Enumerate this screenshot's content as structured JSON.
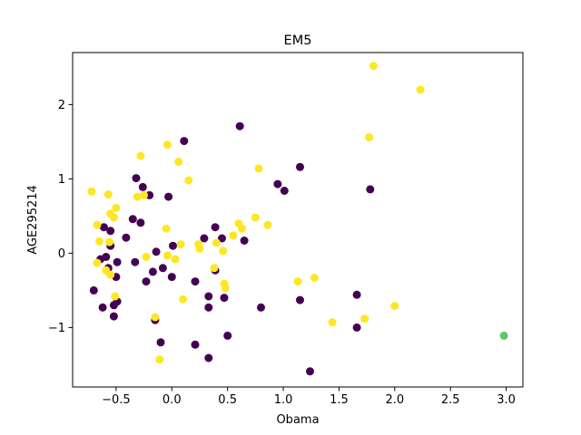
{
  "chart_data": {
    "type": "scatter",
    "title": "EM5",
    "xlabel": "Obama",
    "ylabel": "AGE295214",
    "xlim": [
      -0.89,
      3.15
    ],
    "ylim": [
      -1.8,
      2.7
    ],
    "xticks": [
      -0.5,
      0.0,
      0.5,
      1.0,
      1.5,
      2.0,
      2.5,
      3.0
    ],
    "xtick_labels": [
      "−0.5",
      "0.0",
      "0.5",
      "1.0",
      "1.5",
      "2.0",
      "2.5",
      "3.0"
    ],
    "yticks": [
      -1,
      0,
      1,
      2
    ],
    "ytick_labels": [
      "−1",
      "0",
      "1",
      "2"
    ],
    "grid": false,
    "colors": {
      "purple": "#440154",
      "yellow": "#fde725",
      "green": "#5ec962"
    },
    "series": [
      {
        "color": "purple",
        "points": [
          [
            -0.32,
            1.01
          ],
          [
            -0.26,
            0.89
          ],
          [
            -0.2,
            0.78
          ],
          [
            -0.03,
            0.76
          ],
          [
            0.11,
            1.51
          ],
          [
            0.61,
            1.71
          ],
          [
            1.15,
            1.16
          ],
          [
            0.95,
            0.93
          ],
          [
            1.01,
            0.84
          ],
          [
            1.78,
            0.86
          ],
          [
            -0.61,
            0.35
          ],
          [
            -0.35,
            0.46
          ],
          [
            -0.28,
            0.41
          ],
          [
            -0.55,
            0.3
          ],
          [
            -0.41,
            0.21
          ],
          [
            -0.55,
            0.1
          ],
          [
            -0.64,
            -0.08
          ],
          [
            -0.59,
            -0.05
          ],
          [
            -0.49,
            -0.12
          ],
          [
            -0.33,
            -0.12
          ],
          [
            -0.57,
            -0.2
          ],
          [
            -0.5,
            -0.32
          ],
          [
            -0.7,
            -0.5
          ],
          [
            -0.62,
            -0.73
          ],
          [
            -0.52,
            -0.7
          ],
          [
            -0.49,
            -0.65
          ],
          [
            -0.52,
            -0.85
          ],
          [
            -0.17,
            -0.25
          ],
          [
            -0.23,
            -0.38
          ],
          [
            -0.14,
            0.02
          ],
          [
            -0.08,
            -0.2
          ],
          [
            0.0,
            -0.32
          ],
          [
            0.01,
            0.1
          ],
          [
            0.21,
            -0.38
          ],
          [
            0.29,
            0.2
          ],
          [
            0.39,
            0.35
          ],
          [
            0.39,
            -0.23
          ],
          [
            0.45,
            0.2
          ],
          [
            0.65,
            0.17
          ],
          [
            0.33,
            -0.58
          ],
          [
            0.33,
            -0.73
          ],
          [
            0.47,
            -0.6
          ],
          [
            0.8,
            -0.73
          ],
          [
            1.15,
            -0.63
          ],
          [
            -0.15,
            -0.9
          ],
          [
            -0.1,
            -1.2
          ],
          [
            0.21,
            -1.23
          ],
          [
            0.33,
            -1.41
          ],
          [
            0.5,
            -1.11
          ],
          [
            1.24,
            -1.59
          ],
          [
            1.66,
            -0.56
          ],
          [
            1.66,
            -1.0
          ]
        ]
      },
      {
        "color": "yellow",
        "points": [
          [
            1.81,
            2.52
          ],
          [
            2.23,
            2.2
          ],
          [
            1.77,
            1.56
          ],
          [
            -0.28,
            1.31
          ],
          [
            -0.04,
            1.46
          ],
          [
            0.06,
            1.23
          ],
          [
            0.15,
            0.98
          ],
          [
            0.78,
            1.14
          ],
          [
            -0.72,
            0.83
          ],
          [
            -0.57,
            0.79
          ],
          [
            -0.31,
            0.76
          ],
          [
            -0.25,
            0.78
          ],
          [
            -0.5,
            0.61
          ],
          [
            -0.55,
            0.53
          ],
          [
            -0.52,
            0.48
          ],
          [
            -0.67,
            0.38
          ],
          [
            -0.05,
            0.33
          ],
          [
            0.6,
            0.4
          ],
          [
            0.63,
            0.33
          ],
          [
            0.75,
            0.48
          ],
          [
            0.86,
            0.38
          ],
          [
            0.55,
            0.24
          ],
          [
            0.4,
            0.14
          ],
          [
            0.46,
            0.03
          ],
          [
            0.24,
            0.12
          ],
          [
            0.25,
            0.06
          ],
          [
            0.08,
            0.12
          ],
          [
            -0.65,
            0.16
          ],
          [
            -0.56,
            0.15
          ],
          [
            -0.67,
            -0.13
          ],
          [
            -0.59,
            -0.23
          ],
          [
            -0.55,
            -0.29
          ],
          [
            -0.23,
            -0.05
          ],
          [
            -0.04,
            -0.03
          ],
          [
            0.03,
            -0.08
          ],
          [
            0.38,
            -0.2
          ],
          [
            0.47,
            -0.41
          ],
          [
            0.48,
            -0.47
          ],
          [
            0.1,
            -0.62
          ],
          [
            -0.51,
            -0.58
          ],
          [
            -0.15,
            -0.86
          ],
          [
            -0.11,
            -1.43
          ],
          [
            1.13,
            -0.38
          ],
          [
            1.28,
            -0.33
          ],
          [
            1.44,
            -0.93
          ],
          [
            1.73,
            -0.88
          ],
          [
            2.0,
            -0.71
          ]
        ]
      },
      {
        "color": "green",
        "points": [
          [
            2.98,
            -1.11
          ]
        ]
      }
    ]
  }
}
